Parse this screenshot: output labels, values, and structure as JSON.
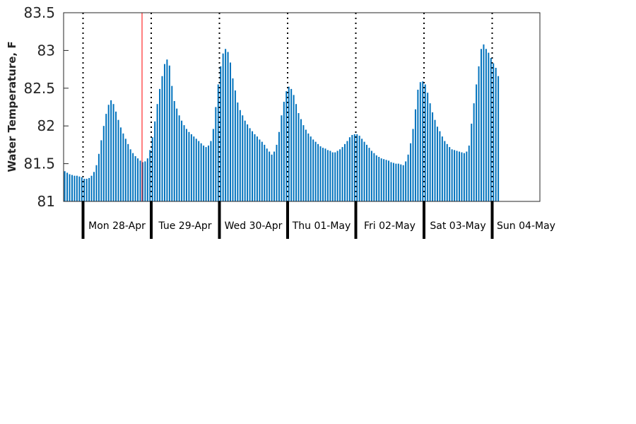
{
  "chart_data": {
    "type": "bar",
    "title": "",
    "xlabel": "",
    "ylabel": "Water Temperature, F",
    "ylim": [
      81,
      83.5
    ],
    "yticks": [
      81,
      81.5,
      82,
      82.5,
      83,
      83.5
    ],
    "ytick_labels": [
      "81",
      "81.5",
      "82",
      "82.5",
      "83",
      "83.5"
    ],
    "grid": false,
    "bar_color": "#0072BD",
    "marker_color": "#FF0000",
    "days": [
      "Mon 28-Apr",
      "Tue 29-Apr",
      "Wed 30-Apr",
      "Thu 01-May",
      "Fri 02-May",
      "Sat 03-May",
      "Sun 04-May"
    ],
    "series": [
      {
        "values": [
          81.4,
          81.38,
          81.36,
          81.35,
          81.34,
          81.34,
          81.33,
          81.32,
          81.3,
          81.3,
          81.31,
          81.34,
          81.39,
          81.48,
          81.63,
          81.81,
          82.0,
          82.16,
          82.28,
          82.34,
          82.29,
          82.19,
          82.08,
          81.98,
          81.9,
          81.83,
          81.76,
          81.69,
          81.64,
          81.6,
          81.57,
          81.54,
          81.52,
          81.53,
          81.57,
          81.68,
          81.85,
          82.06,
          82.29,
          82.49,
          82.66,
          82.82,
          82.88,
          82.8,
          82.53,
          82.33,
          82.23,
          82.14,
          82.07,
          82.01,
          81.96,
          81.92,
          81.89,
          81.86,
          81.83,
          81.8,
          81.77,
          81.74,
          81.72,
          81.74,
          81.8,
          81.96,
          82.25,
          82.55,
          82.79,
          82.96,
          83.02,
          82.98,
          82.84,
          82.63,
          82.47,
          82.31,
          82.21,
          82.14,
          82.07,
          82.02,
          81.97,
          81.93,
          81.89,
          81.86,
          81.82,
          81.79,
          81.75,
          81.7,
          81.66,
          81.62,
          81.66,
          81.75,
          81.92,
          82.14,
          82.32,
          82.46,
          82.52,
          82.49,
          82.41,
          82.29,
          82.17,
          82.09,
          82.01,
          81.95,
          81.9,
          81.86,
          81.82,
          81.79,
          81.76,
          81.73,
          81.71,
          81.7,
          81.68,
          81.67,
          81.65,
          81.65,
          81.67,
          81.69,
          81.72,
          81.76,
          81.8,
          81.85,
          81.88,
          81.89,
          81.89,
          81.87,
          81.83,
          81.79,
          81.75,
          81.71,
          81.67,
          81.64,
          81.61,
          81.59,
          81.57,
          81.56,
          81.55,
          81.54,
          81.52,
          81.51,
          81.5,
          81.5,
          81.49,
          81.48,
          81.53,
          81.62,
          81.77,
          81.96,
          82.22,
          82.48,
          82.58,
          82.59,
          82.55,
          82.44,
          82.3,
          82.18,
          82.08,
          81.99,
          81.93,
          81.86,
          81.8,
          81.76,
          81.72,
          81.69,
          81.68,
          81.67,
          81.66,
          81.65,
          81.64,
          81.66,
          81.74,
          82.03,
          82.3,
          82.55,
          82.79,
          83.02,
          83.08,
          83.02,
          82.97,
          82.9,
          82.83,
          82.77,
          82.66
        ]
      }
    ]
  }
}
